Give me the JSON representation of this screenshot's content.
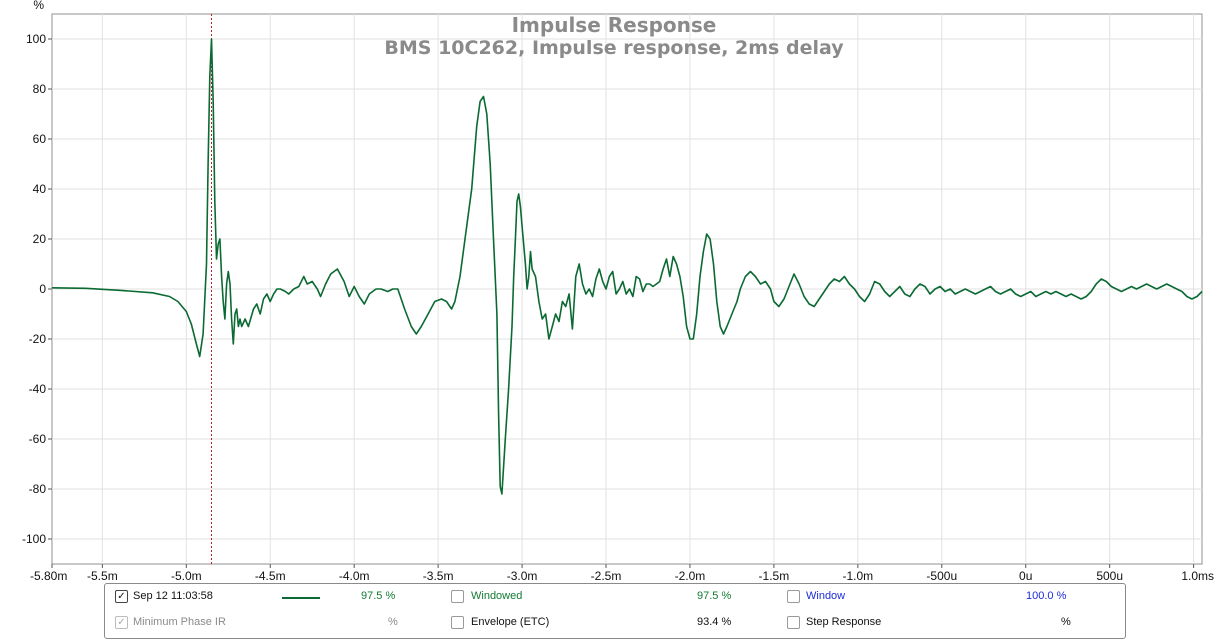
{
  "chart_data": {
    "type": "line",
    "title": "Impulse Response",
    "subtitle": "BMS 10C262, Impulse response, 2ms delay",
    "ylabel": "%",
    "xlabel": "",
    "xlim": [
      -5.8,
      1.05
    ],
    "ylim": [
      -110,
      110
    ],
    "y_ticks": [
      100,
      80,
      60,
      40,
      20,
      0,
      -20,
      -40,
      -60,
      -80,
      -100
    ],
    "x_ticks": [
      {
        "v": -5.8,
        "label": "-5.80m"
      },
      {
        "v": -5.5,
        "label": "-5.5m"
      },
      {
        "v": -5.0,
        "label": "-5.0m"
      },
      {
        "v": -4.5,
        "label": "-4.5m"
      },
      {
        "v": -4.0,
        "label": "-4.0m"
      },
      {
        "v": -3.5,
        "label": "-3.5m"
      },
      {
        "v": -3.0,
        "label": "-3.0m"
      },
      {
        "v": -2.5,
        "label": "-2.5m"
      },
      {
        "v": -2.0,
        "label": "-2.0m"
      },
      {
        "v": -1.5,
        "label": "-1.5m"
      },
      {
        "v": -1.0,
        "label": "-1.0m"
      },
      {
        "v": -0.5,
        "label": "-500u"
      },
      {
        "v": 0.0,
        "label": "0u"
      },
      {
        "v": 0.5,
        "label": "500u"
      },
      {
        "v": 1.0,
        "label": "1.0ms"
      }
    ],
    "grid": true,
    "marker_x": -4.85,
    "series": [
      {
        "color": "#0b6a33",
        "points": [
          [
            -5.8,
            0.5
          ],
          [
            -5.6,
            0.3
          ],
          [
            -5.4,
            -0.5
          ],
          [
            -5.2,
            -1.5
          ],
          [
            -5.1,
            -3
          ],
          [
            -5.05,
            -5
          ],
          [
            -5.0,
            -9
          ],
          [
            -4.97,
            -14
          ],
          [
            -4.94,
            -22
          ],
          [
            -4.92,
            -27
          ],
          [
            -4.9,
            -18
          ],
          [
            -4.88,
            10
          ],
          [
            -4.87,
            50
          ],
          [
            -4.86,
            85
          ],
          [
            -4.85,
            100
          ],
          [
            -4.84,
            75
          ],
          [
            -4.83,
            35
          ],
          [
            -4.82,
            12
          ],
          [
            -4.81,
            18
          ],
          [
            -4.8,
            20
          ],
          [
            -4.79,
            5
          ],
          [
            -4.78,
            -5
          ],
          [
            -4.77,
            -12
          ],
          [
            -4.76,
            2
          ],
          [
            -4.75,
            7
          ],
          [
            -4.74,
            2
          ],
          [
            -4.73,
            -12
          ],
          [
            -4.72,
            -22
          ],
          [
            -4.71,
            -10
          ],
          [
            -4.7,
            -8
          ],
          [
            -4.69,
            -15
          ],
          [
            -4.68,
            -12
          ],
          [
            -4.67,
            -15
          ],
          [
            -4.65,
            -12
          ],
          [
            -4.63,
            -15
          ],
          [
            -4.6,
            -8
          ],
          [
            -4.58,
            -6
          ],
          [
            -4.56,
            -10
          ],
          [
            -4.54,
            -4
          ],
          [
            -4.52,
            -2
          ],
          [
            -4.5,
            -5
          ],
          [
            -4.48,
            -2
          ],
          [
            -4.46,
            0
          ],
          [
            -4.44,
            0
          ],
          [
            -4.41,
            -1
          ],
          [
            -4.39,
            -2
          ],
          [
            -4.36,
            0
          ],
          [
            -4.33,
            1
          ],
          [
            -4.3,
            5
          ],
          [
            -4.28,
            2
          ],
          [
            -4.25,
            3
          ],
          [
            -4.22,
            0
          ],
          [
            -4.2,
            -3
          ],
          [
            -4.17,
            2
          ],
          [
            -4.14,
            6
          ],
          [
            -4.1,
            8
          ],
          [
            -4.06,
            3
          ],
          [
            -4.03,
            -3
          ],
          [
            -4.0,
            1
          ],
          [
            -3.97,
            -3
          ],
          [
            -3.94,
            -6
          ],
          [
            -3.91,
            -2
          ],
          [
            -3.87,
            0
          ],
          [
            -3.84,
            0
          ],
          [
            -3.8,
            -1
          ],
          [
            -3.77,
            0
          ],
          [
            -3.74,
            0
          ],
          [
            -3.7,
            -8
          ],
          [
            -3.66,
            -15
          ],
          [
            -3.63,
            -18
          ],
          [
            -3.6,
            -15
          ],
          [
            -3.56,
            -10
          ],
          [
            -3.52,
            -5
          ],
          [
            -3.48,
            -4
          ],
          [
            -3.45,
            -5
          ],
          [
            -3.42,
            -8
          ],
          [
            -3.4,
            -5
          ],
          [
            -3.37,
            5
          ],
          [
            -3.34,
            20
          ],
          [
            -3.3,
            40
          ],
          [
            -3.27,
            65
          ],
          [
            -3.25,
            75
          ],
          [
            -3.23,
            77
          ],
          [
            -3.21,
            70
          ],
          [
            -3.19,
            50
          ],
          [
            -3.17,
            20
          ],
          [
            -3.15,
            -10
          ],
          [
            -3.14,
            -50
          ],
          [
            -3.13,
            -79
          ],
          [
            -3.12,
            -82
          ],
          [
            -3.1,
            -60
          ],
          [
            -3.08,
            -40
          ],
          [
            -3.06,
            -15
          ],
          [
            -3.05,
            5
          ],
          [
            -3.04,
            20
          ],
          [
            -3.03,
            35
          ],
          [
            -3.02,
            38
          ],
          [
            -3.01,
            33
          ],
          [
            -3.0,
            25
          ],
          [
            -2.98,
            10
          ],
          [
            -2.97,
            0
          ],
          [
            -2.96,
            5
          ],
          [
            -2.95,
            15
          ],
          [
            -2.94,
            8
          ],
          [
            -2.92,
            5
          ],
          [
            -2.9,
            -5
          ],
          [
            -2.88,
            -12
          ],
          [
            -2.86,
            -10
          ],
          [
            -2.84,
            -20
          ],
          [
            -2.82,
            -15
          ],
          [
            -2.8,
            -10
          ],
          [
            -2.78,
            -13
          ],
          [
            -2.76,
            -5
          ],
          [
            -2.74,
            -7
          ],
          [
            -2.72,
            -2
          ],
          [
            -2.7,
            -16
          ],
          [
            -2.68,
            5
          ],
          [
            -2.66,
            10
          ],
          [
            -2.64,
            2
          ],
          [
            -2.62,
            -2
          ],
          [
            -2.6,
            0
          ],
          [
            -2.58,
            -3
          ],
          [
            -2.56,
            4
          ],
          [
            -2.54,
            8
          ],
          [
            -2.52,
            3
          ],
          [
            -2.5,
            0
          ],
          [
            -2.48,
            5
          ],
          [
            -2.46,
            7
          ],
          [
            -2.44,
            -2
          ],
          [
            -2.42,
            0
          ],
          [
            -2.4,
            3
          ],
          [
            -2.38,
            -2
          ],
          [
            -2.36,
            0
          ],
          [
            -2.34,
            -3
          ],
          [
            -2.32,
            5
          ],
          [
            -2.3,
            4
          ],
          [
            -2.28,
            -1
          ],
          [
            -2.26,
            2
          ],
          [
            -2.24,
            2
          ],
          [
            -2.22,
            1
          ],
          [
            -2.2,
            2
          ],
          [
            -2.18,
            3
          ],
          [
            -2.16,
            8
          ],
          [
            -2.14,
            12
          ],
          [
            -2.12,
            5
          ],
          [
            -2.1,
            13
          ],
          [
            -2.08,
            10
          ],
          [
            -2.06,
            5
          ],
          [
            -2.04,
            -3
          ],
          [
            -2.02,
            -15
          ],
          [
            -2.0,
            -20
          ],
          [
            -1.98,
            -20
          ],
          [
            -1.96,
            -10
          ],
          [
            -1.94,
            5
          ],
          [
            -1.92,
            15
          ],
          [
            -1.9,
            22
          ],
          [
            -1.88,
            20
          ],
          [
            -1.86,
            10
          ],
          [
            -1.84,
            -5
          ],
          [
            -1.82,
            -15
          ],
          [
            -1.8,
            -18
          ],
          [
            -1.78,
            -15
          ],
          [
            -1.75,
            -10
          ],
          [
            -1.72,
            -5
          ],
          [
            -1.7,
            0
          ],
          [
            -1.67,
            5
          ],
          [
            -1.64,
            7
          ],
          [
            -1.61,
            5
          ],
          [
            -1.58,
            2
          ],
          [
            -1.55,
            3
          ],
          [
            -1.52,
            0
          ],
          [
            -1.5,
            -5
          ],
          [
            -1.47,
            -7
          ],
          [
            -1.44,
            -4
          ],
          [
            -1.41,
            1
          ],
          [
            -1.38,
            6
          ],
          [
            -1.35,
            2
          ],
          [
            -1.32,
            -3
          ],
          [
            -1.29,
            -6
          ],
          [
            -1.26,
            -7
          ],
          [
            -1.23,
            -4
          ],
          [
            -1.2,
            -1
          ],
          [
            -1.17,
            2
          ],
          [
            -1.14,
            4
          ],
          [
            -1.11,
            3
          ],
          [
            -1.08,
            5
          ],
          [
            -1.05,
            2
          ],
          [
            -1.02,
            0
          ],
          [
            -0.99,
            -3
          ],
          [
            -0.96,
            -5
          ],
          [
            -0.93,
            -2
          ],
          [
            -0.9,
            3
          ],
          [
            -0.87,
            2
          ],
          [
            -0.84,
            -1
          ],
          [
            -0.81,
            -3
          ],
          [
            -0.78,
            -1
          ],
          [
            -0.75,
            1
          ],
          [
            -0.72,
            -2
          ],
          [
            -0.69,
            -3
          ],
          [
            -0.66,
            0
          ],
          [
            -0.63,
            2
          ],
          [
            -0.6,
            1
          ],
          [
            -0.57,
            -2
          ],
          [
            -0.54,
            0
          ],
          [
            -0.51,
            1
          ],
          [
            -0.48,
            -1
          ],
          [
            -0.45,
            0
          ],
          [
            -0.42,
            -2
          ],
          [
            -0.39,
            -1
          ],
          [
            -0.36,
            0
          ],
          [
            -0.33,
            -1
          ],
          [
            -0.3,
            -2
          ],
          [
            -0.27,
            -1
          ],
          [
            -0.24,
            0
          ],
          [
            -0.21,
            1
          ],
          [
            -0.18,
            -1
          ],
          [
            -0.15,
            -2
          ],
          [
            -0.12,
            -1
          ],
          [
            -0.09,
            0
          ],
          [
            -0.06,
            -2
          ],
          [
            -0.03,
            -3
          ],
          [
            0.0,
            -2
          ],
          [
            0.03,
            -1
          ],
          [
            0.06,
            -3
          ],
          [
            0.09,
            -2
          ],
          [
            0.12,
            -1
          ],
          [
            0.15,
            -2
          ],
          [
            0.18,
            -1
          ],
          [
            0.21,
            -2
          ],
          [
            0.24,
            -3
          ],
          [
            0.27,
            -2
          ],
          [
            0.3,
            -3
          ],
          [
            0.33,
            -4
          ],
          [
            0.36,
            -3
          ],
          [
            0.39,
            -1
          ],
          [
            0.42,
            2
          ],
          [
            0.45,
            4
          ],
          [
            0.48,
            3
          ],
          [
            0.51,
            1
          ],
          [
            0.54,
            0
          ],
          [
            0.57,
            -1
          ],
          [
            0.6,
            0
          ],
          [
            0.63,
            1
          ],
          [
            0.66,
            0
          ],
          [
            0.69,
            1
          ],
          [
            0.72,
            2
          ],
          [
            0.75,
            1
          ],
          [
            0.78,
            0
          ],
          [
            0.81,
            1
          ],
          [
            0.84,
            2
          ],
          [
            0.87,
            1
          ],
          [
            0.9,
            0
          ],
          [
            0.93,
            -1
          ],
          [
            0.96,
            -3
          ],
          [
            0.99,
            -4
          ],
          [
            1.02,
            -3
          ],
          [
            1.05,
            -1
          ]
        ]
      }
    ]
  },
  "legend": {
    "row1": {
      "checkbox": "✓",
      "name": "Sep 12 11:03:58",
      "value": "97.5 %",
      "windowed_label": "Windowed",
      "windowed_value": "97.5 %",
      "window_label": "Window",
      "window_value": "100.0 %"
    },
    "row2": {
      "checkbox": "✓",
      "name": "Minimum Phase IR",
      "value": "%",
      "envelope_label": "Envelope (ETC)",
      "envelope_value": "93.4 %",
      "step_label": "Step Response",
      "step_value": "%"
    }
  }
}
